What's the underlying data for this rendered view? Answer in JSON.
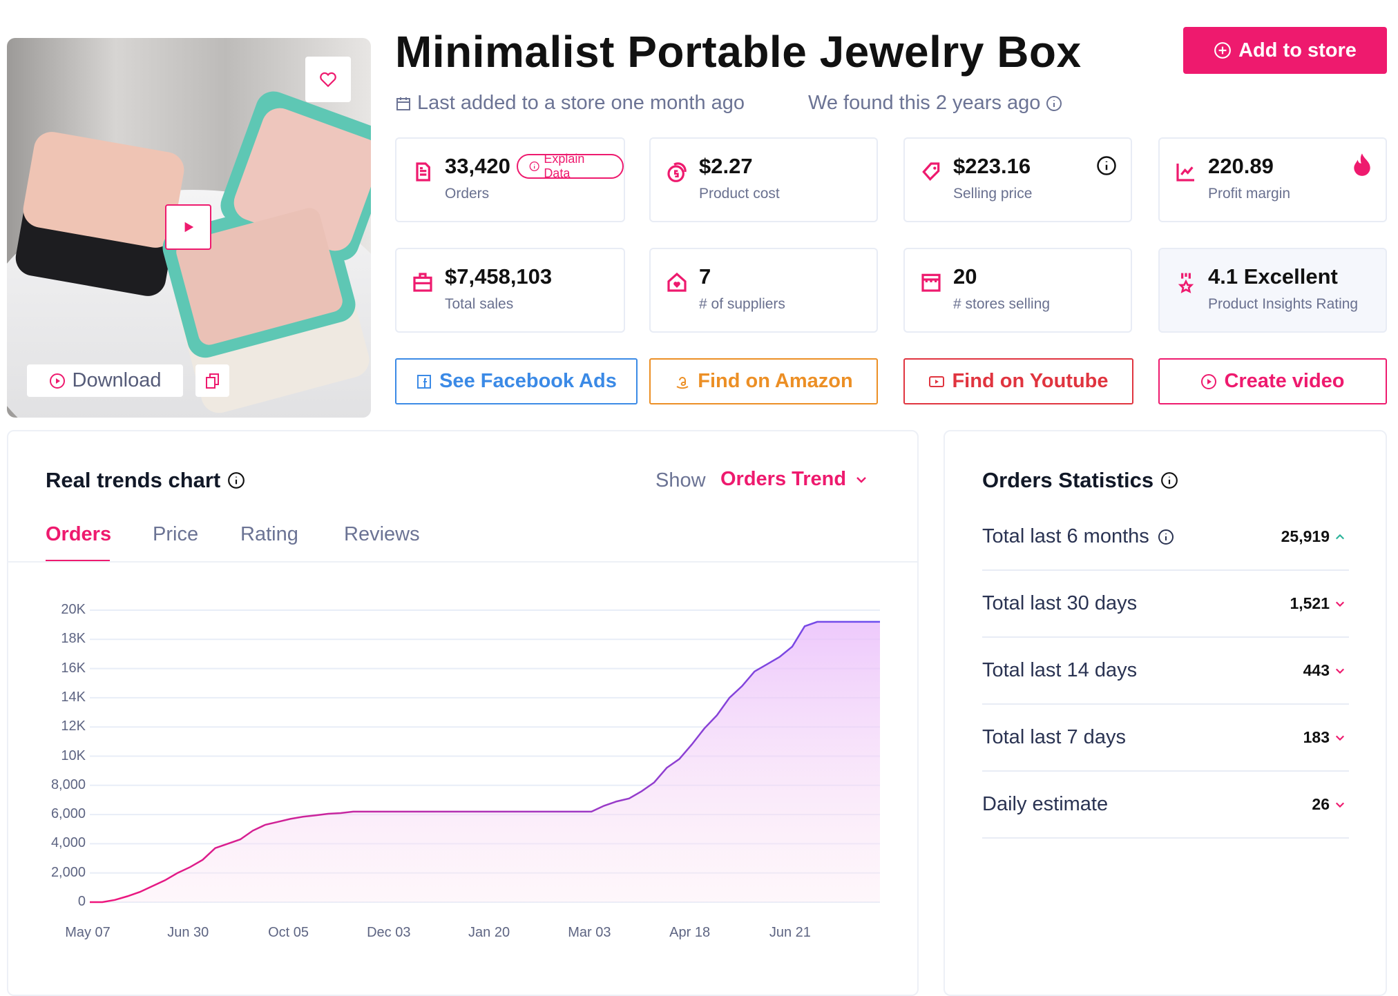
{
  "product": {
    "title": "Minimalist Portable Jewelry Box",
    "last_added": "Last added to a store one month ago",
    "found": "We found this 2 years ago",
    "add_button": "Add to store"
  },
  "media": {
    "download_label": "Download"
  },
  "stats": [
    {
      "value": "33,420",
      "label": "Orders",
      "badge": "Explain Data",
      "icon": "receipt-icon"
    },
    {
      "value": "$2.27",
      "label": "Product cost",
      "icon": "coins-icon"
    },
    {
      "value": "$223.16",
      "label": "Selling price",
      "icon": "price-tag-icon"
    },
    {
      "value": "220.89",
      "label": "Profit margin",
      "icon": "chart-line-icon"
    },
    {
      "value": "$7,458,103",
      "label": "Total sales",
      "icon": "briefcase-icon"
    },
    {
      "value": "7",
      "label": "# of suppliers",
      "icon": "house-heart-icon"
    },
    {
      "value": "20",
      "label": "# stores selling",
      "icon": "storefront-icon"
    },
    {
      "value": "4.1 Excellent",
      "label": "Product Insights Rating",
      "icon": "award-icon"
    }
  ],
  "links": [
    {
      "label": "See Facebook Ads",
      "color": "#3b8ae6",
      "icon": "facebook-icon"
    },
    {
      "label": "Find on Amazon",
      "color": "#ec8f25",
      "icon": "amazon-icon"
    },
    {
      "label": "Find on Youtube",
      "color": "#e0343f",
      "icon": "youtube-icon"
    },
    {
      "label": "Create video",
      "color": "#ee1a6e",
      "icon": "play-circle-icon"
    }
  ],
  "trends": {
    "title": "Real trends chart",
    "show_label": "Show",
    "show_value": "Orders Trend",
    "tabs": [
      "Orders",
      "Price",
      "Rating",
      "Reviews"
    ],
    "active_tab": "Orders"
  },
  "chart_data": {
    "type": "area",
    "x_ticks": [
      "May 07",
      "Jun 30",
      "Oct 05",
      "Dec 03",
      "Jan 20",
      "Mar 03",
      "Apr 18",
      "Jun 21"
    ],
    "y_ticks": [
      "0",
      "2,000",
      "4,000",
      "6,000",
      "8,000",
      "10K",
      "12K",
      "14K",
      "16K",
      "18K",
      "20K"
    ],
    "ylim": [
      0,
      20000
    ],
    "grid": true,
    "colors": {
      "start": "#f0147a",
      "end": "#6b4ef0"
    },
    "values": [
      0,
      0,
      150,
      400,
      700,
      1100,
      1500,
      2000,
      2400,
      2900,
      3700,
      4000,
      4300,
      4900,
      5300,
      5500,
      5700,
      5850,
      5950,
      6050,
      6100,
      6200,
      6200,
      6200,
      6200,
      6200,
      6200,
      6200,
      6200,
      6200,
      6200,
      6200,
      6200,
      6200,
      6200,
      6200,
      6200,
      6200,
      6200,
      6200,
      6200,
      6600,
      6900,
      7100,
      7600,
      8200,
      9200,
      9800,
      10800,
      11900,
      12800,
      14000,
      14800,
      15800,
      16300,
      16800,
      17500,
      18900,
      19200,
      19200,
      19200,
      19200,
      19200,
      19200
    ]
  },
  "order_stats": {
    "title": "Orders Statistics",
    "rows": [
      {
        "label": "Total last 6 months",
        "value": "25,919",
        "info": true,
        "expanded": true
      },
      {
        "label": "Total last 30 days",
        "value": "1,521"
      },
      {
        "label": "Total last 14 days",
        "value": "443"
      },
      {
        "label": "Total last 7 days",
        "value": "183"
      },
      {
        "label": "Daily estimate",
        "value": "26"
      }
    ]
  }
}
